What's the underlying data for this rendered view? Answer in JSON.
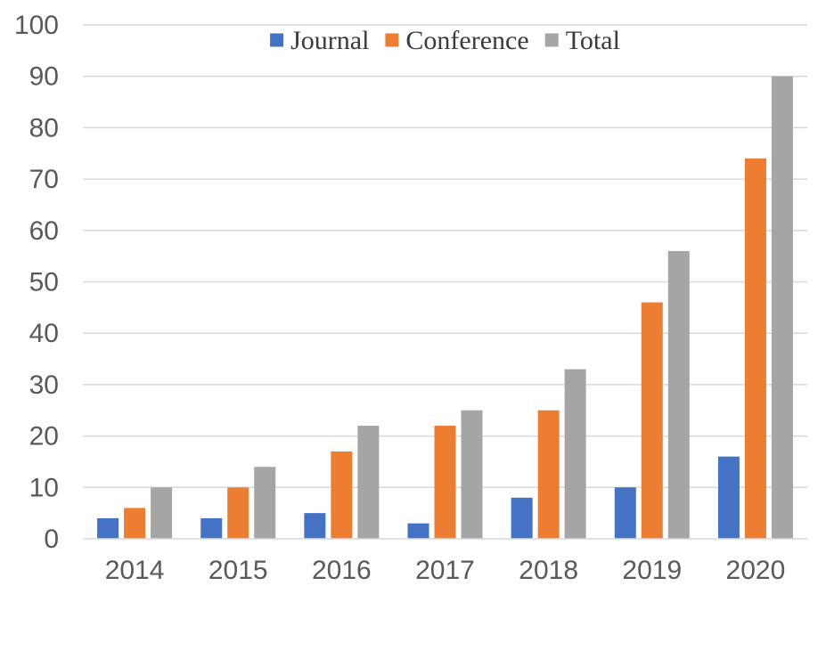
{
  "chart_data": {
    "type": "bar",
    "title": "",
    "xlabel": "",
    "ylabel": "",
    "categories": [
      "2014",
      "2015",
      "2016",
      "2017",
      "2018",
      "2019",
      "2020"
    ],
    "series": [
      {
        "name": "Journal",
        "color": "#4472c4",
        "values": [
          4,
          4,
          5,
          3,
          8,
          10,
          16
        ]
      },
      {
        "name": "Conference",
        "color": "#ed7d31",
        "values": [
          6,
          10,
          17,
          22,
          25,
          46,
          74
        ]
      },
      {
        "name": "Total",
        "color": "#a5a5a5",
        "values": [
          10,
          14,
          22,
          25,
          33,
          56,
          90
        ]
      }
    ],
    "ylim": [
      0,
      100
    ],
    "yticks": [
      "0",
      "10",
      "20",
      "30",
      "40",
      "50",
      "60",
      "70",
      "80",
      "90",
      "100"
    ],
    "grid": true,
    "legend_position": "top"
  }
}
